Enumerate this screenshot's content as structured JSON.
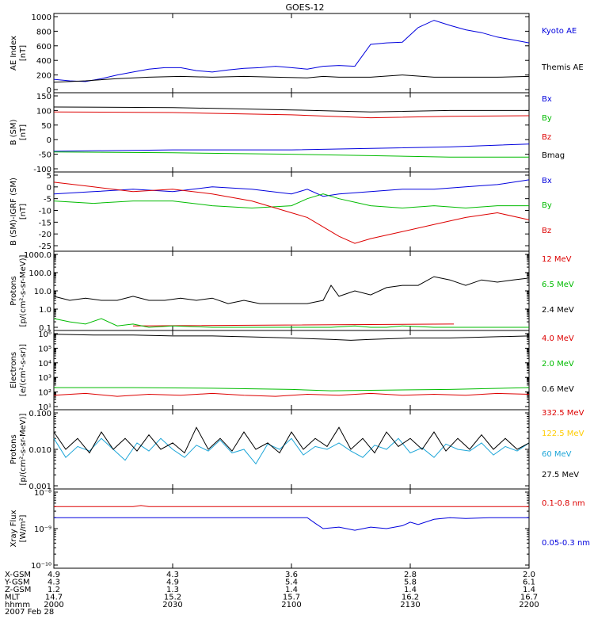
{
  "title": "GOES-12",
  "date_label": "2007 Feb 28",
  "chart_data": [
    {
      "type": "line",
      "id": "ae",
      "ylabel": [
        "AE Index",
        "[nT]"
      ],
      "ylim": [
        0,
        1000
      ],
      "scale": "linear",
      "yticks": [
        {
          "v": 0,
          "label": "0"
        },
        {
          "v": 200,
          "label": "200"
        },
        {
          "v": 400,
          "label": "400"
        },
        {
          "v": 600,
          "label": "600"
        },
        {
          "v": 800,
          "label": "800"
        },
        {
          "v": 1000,
          "label": "1000"
        }
      ],
      "series": [
        {
          "name": "Kyoto AE",
          "color": "#0000dd",
          "x": [
            0,
            4,
            8,
            12,
            16,
            20,
            24,
            28,
            32,
            36,
            40,
            44,
            48,
            52,
            56,
            60,
            64,
            68,
            72,
            76,
            80,
            84,
            88,
            92,
            96,
            100,
            104,
            108,
            112,
            116,
            120
          ],
          "values": [
            140,
            120,
            110,
            150,
            200,
            240,
            280,
            300,
            300,
            260,
            240,
            270,
            290,
            300,
            320,
            300,
            280,
            320,
            330,
            320,
            620,
            640,
            650,
            850,
            950,
            880,
            820,
            780,
            720,
            680,
            640
          ]
        },
        {
          "name": "Themis AE",
          "color": "#000000",
          "x": [
            0,
            8,
            16,
            24,
            32,
            40,
            48,
            56,
            64,
            68,
            72,
            80,
            88,
            96,
            104,
            112,
            120
          ],
          "values": [
            100,
            120,
            150,
            170,
            180,
            170,
            180,
            170,
            160,
            180,
            170,
            170,
            200,
            170,
            170,
            170,
            180
          ]
        }
      ]
    },
    {
      "type": "line",
      "id": "bsm",
      "ylabel": [
        "B (SM)",
        "[nT]"
      ],
      "ylim": [
        -100,
        150
      ],
      "scale": "linear",
      "yticks": [
        {
          "v": -100,
          "label": "-100"
        },
        {
          "v": -50,
          "label": "-50"
        },
        {
          "v": 0,
          "label": "0"
        },
        {
          "v": 50,
          "label": "50"
        },
        {
          "v": 100,
          "label": "100"
        },
        {
          "v": 150,
          "label": "150"
        }
      ],
      "series": [
        {
          "name": "Bx",
          "color": "#0000dd",
          "x": [
            0,
            30,
            60,
            80,
            100,
            120
          ],
          "values": [
            -40,
            -35,
            -35,
            -30,
            -25,
            -15
          ]
        },
        {
          "name": "By",
          "color": "#00bb00",
          "x": [
            0,
            30,
            60,
            80,
            100,
            120
          ],
          "values": [
            -42,
            -45,
            -50,
            -55,
            -60,
            -60
          ]
        },
        {
          "name": "Bz",
          "color": "#dd0000",
          "x": [
            0,
            30,
            60,
            80,
            100,
            120
          ],
          "values": [
            95,
            93,
            85,
            75,
            80,
            82
          ]
        },
        {
          "name": "Bmag",
          "color": "#000000",
          "x": [
            0,
            30,
            60,
            80,
            100,
            120
          ],
          "values": [
            112,
            110,
            102,
            95,
            100,
            100
          ]
        }
      ]
    },
    {
      "type": "line",
      "id": "bdiff",
      "ylabel": [
        "B (SM)-IGRF (SM)",
        "[nT]"
      ],
      "ylim": [
        -26,
        5
      ],
      "scale": "linear",
      "yticks": [
        {
          "v": -25,
          "label": "-25"
        },
        {
          "v": -20,
          "label": "-20"
        },
        {
          "v": -15,
          "label": "-15"
        },
        {
          "v": -10,
          "label": "-10"
        },
        {
          "v": -5,
          "label": "-5"
        },
        {
          "v": 0,
          "label": "0"
        },
        {
          "v": 5,
          "label": "5"
        }
      ],
      "series": [
        {
          "name": "Bx",
          "color": "#0000dd",
          "x": [
            0,
            10,
            20,
            30,
            40,
            50,
            60,
            64,
            68,
            72,
            80,
            88,
            96,
            104,
            112,
            120
          ],
          "values": [
            -3,
            -2,
            -1,
            -2,
            0,
            -1,
            -3,
            -1,
            -4,
            -3,
            -2,
            -1,
            -1,
            0,
            1,
            3
          ]
        },
        {
          "name": "By",
          "color": "#00bb00",
          "x": [
            0,
            10,
            20,
            30,
            40,
            50,
            60,
            64,
            68,
            72,
            80,
            88,
            96,
            104,
            112,
            120
          ],
          "values": [
            -6,
            -7,
            -6,
            -6,
            -8,
            -9,
            -8,
            -5,
            -3,
            -5,
            -8,
            -9,
            -8,
            -9,
            -8,
            -8
          ]
        },
        {
          "name": "Bz",
          "color": "#dd0000",
          "x": [
            0,
            10,
            20,
            30,
            40,
            50,
            60,
            64,
            68,
            72,
            76,
            80,
            88,
            96,
            104,
            112,
            120
          ],
          "values": [
            2,
            0,
            -2,
            -1,
            -3,
            -6,
            -11,
            -13,
            -17,
            -21,
            -24,
            -22,
            -19,
            -16,
            -13,
            -11,
            -14
          ]
        }
      ]
    },
    {
      "type": "line",
      "id": "protons_low",
      "ylabel": [
        "Protons",
        "[p/(cm²-s-sr-MeV)]"
      ],
      "ylim": [
        0.1,
        1000
      ],
      "scale": "log",
      "yticks": [
        {
          "v": 0.1,
          "label": "0.1"
        },
        {
          "v": 1,
          "label": "1.0"
        },
        {
          "v": 10,
          "label": "10.0"
        },
        {
          "v": 100,
          "label": "100.0"
        },
        {
          "v": 1000,
          "label": "1000.0"
        }
      ],
      "series": [
        {
          "name": "12 MeV",
          "color": "#dd0000",
          "x": [
            20,
            20.5,
            100,
            101
          ],
          "values": [
            0.12,
            0.12,
            0.15,
            0.15
          ]
        },
        {
          "name": "6.5 MeV",
          "color": "#00bb00",
          "x": [
            0,
            4,
            8,
            12,
            16,
            20,
            24,
            30,
            40,
            50,
            60,
            70,
            76,
            80,
            84,
            88,
            96,
            104,
            112,
            116,
            120
          ],
          "values": [
            0.3,
            0.2,
            0.15,
            0.3,
            0.12,
            0.15,
            0.1,
            0.12,
            0.1,
            0.1,
            0.1,
            0.1,
            0.12,
            0.1,
            0.1,
            0.12,
            0.1,
            0.1,
            0.1,
            0.1,
            0.1
          ]
        },
        {
          "name": "2.4 MeV",
          "color": "#000000",
          "x": [
            0,
            4,
            8,
            12,
            16,
            20,
            24,
            28,
            32,
            36,
            40,
            44,
            48,
            52,
            56,
            60,
            64,
            68,
            70,
            72,
            76,
            80,
            84,
            88,
            92,
            96,
            100,
            104,
            108,
            112,
            116,
            120
          ],
          "values": [
            5,
            3,
            4,
            3,
            3,
            5,
            3,
            3,
            4,
            3,
            4,
            2,
            3,
            2,
            2,
            2,
            2,
            3,
            20,
            5,
            10,
            6,
            15,
            20,
            20,
            60,
            40,
            20,
            40,
            30,
            40,
            50
          ]
        }
      ]
    },
    {
      "type": "line",
      "id": "electrons",
      "ylabel": [
        "Electrons",
        "[e/(cm²-s-sr)]"
      ],
      "ylim": [
        10,
        1000000
      ],
      "scale": "log",
      "yticks": [
        {
          "v": 10,
          "label": "10¹"
        },
        {
          "v": 100,
          "label": "10²"
        },
        {
          "v": 1000,
          "label": "10³"
        },
        {
          "v": 10000,
          "label": "10⁴"
        },
        {
          "v": 100000,
          "label": "10⁵"
        },
        {
          "v": 1000000,
          "label": "10⁶"
        }
      ],
      "series": [
        {
          "name": "4.0 MeV",
          "color": "#dd0000",
          "x": [
            0,
            8,
            16,
            24,
            32,
            40,
            48,
            56,
            64,
            72,
            80,
            88,
            96,
            104,
            112,
            120
          ],
          "values": [
            60,
            80,
            50,
            70,
            60,
            80,
            60,
            50,
            70,
            60,
            80,
            60,
            70,
            60,
            80,
            70
          ]
        },
        {
          "name": "2.0 MeV",
          "color": "#00bb00",
          "x": [
            0,
            20,
            40,
            60,
            70,
            80,
            100,
            120
          ],
          "values": [
            200,
            200,
            180,
            150,
            120,
            130,
            150,
            200
          ]
        },
        {
          "name": "0.6 MeV",
          "color": "#000000",
          "x": [
            0,
            10,
            20,
            30,
            40,
            50,
            60,
            70,
            75,
            80,
            90,
            100,
            110,
            120
          ],
          "values": [
            900000,
            800000,
            800000,
            700000,
            700000,
            600000,
            500000,
            400000,
            350000,
            400000,
            500000,
            500000,
            600000,
            700000
          ]
        }
      ]
    },
    {
      "type": "line",
      "id": "protons_high",
      "ylabel": [
        "Protons",
        "[p/(cm²-s-sr-MeV)]"
      ],
      "ylim": [
        0.001,
        0.1
      ],
      "scale": "log",
      "yticks": [
        {
          "v": 0.001,
          "label": "0.001"
        },
        {
          "v": 0.01,
          "label": "0.010"
        },
        {
          "v": 0.1,
          "label": "0.100"
        }
      ],
      "series": [
        {
          "name": "332.5 MeV",
          "color": "#dd0000",
          "x": [],
          "values": []
        },
        {
          "name": "122.5 MeV",
          "color": "#ffcc00",
          "x": [],
          "values": []
        },
        {
          "name": "60 MeV",
          "color": "#1ea6d8",
          "x": [
            0,
            3,
            6,
            9,
            12,
            15,
            18,
            21,
            24,
            27,
            30,
            33,
            36,
            39,
            42,
            45,
            48,
            51,
            54,
            57,
            60,
            63,
            66,
            69,
            72,
            75,
            78,
            81,
            84,
            87,
            90,
            93,
            96,
            99,
            102,
            105,
            108,
            111,
            114,
            117,
            120
          ],
          "values": [
            0.02,
            0.006,
            0.012,
            0.009,
            0.02,
            0.01,
            0.005,
            0.015,
            0.009,
            0.02,
            0.01,
            0.006,
            0.013,
            0.009,
            0.018,
            0.008,
            0.01,
            0.004,
            0.014,
            0.01,
            0.02,
            0.007,
            0.012,
            0.01,
            0.015,
            0.009,
            0.006,
            0.013,
            0.01,
            0.02,
            0.008,
            0.011,
            0.006,
            0.014,
            0.01,
            0.009,
            0.015,
            0.007,
            0.012,
            0.009,
            0.015
          ]
        },
        {
          "name": "27.5 MeV",
          "color": "#000000",
          "x": [
            0,
            3,
            6,
            9,
            12,
            15,
            18,
            21,
            24,
            27,
            30,
            33,
            36,
            39,
            42,
            45,
            48,
            51,
            54,
            57,
            60,
            63,
            66,
            69,
            72,
            75,
            78,
            81,
            84,
            87,
            90,
            93,
            96,
            99,
            102,
            105,
            108,
            111,
            114,
            117,
            120
          ],
          "values": [
            0.03,
            0.01,
            0.02,
            0.008,
            0.03,
            0.01,
            0.02,
            0.009,
            0.025,
            0.01,
            0.015,
            0.008,
            0.04,
            0.01,
            0.02,
            0.009,
            0.03,
            0.01,
            0.015,
            0.008,
            0.03,
            0.01,
            0.02,
            0.012,
            0.04,
            0.01,
            0.02,
            0.008,
            0.03,
            0.012,
            0.02,
            0.01,
            0.03,
            0.009,
            0.02,
            0.01,
            0.025,
            0.01,
            0.02,
            0.01,
            0.015
          ]
        }
      ]
    },
    {
      "type": "line",
      "id": "xray",
      "ylabel": [
        "Xray Flux",
        "[W/m²]"
      ],
      "ylim": [
        1e-10,
        1e-08
      ],
      "scale": "log",
      "yticks": [
        {
          "v": 1e-10,
          "label": "10⁻¹⁰"
        },
        {
          "v": 1e-09,
          "label": "10⁻⁹"
        },
        {
          "v": 1e-08,
          "label": "10⁻⁸"
        }
      ],
      "series": [
        {
          "name": "0.1-0.8 nm",
          "color": "#dd0000",
          "x": [
            0,
            20,
            22,
            24,
            40,
            60,
            80,
            100,
            120
          ],
          "values": [
            4e-09,
            4e-09,
            4.3e-09,
            4e-09,
            4e-09,
            4e-09,
            4e-09,
            4e-09,
            4e-09
          ]
        },
        {
          "name": "0.05-0.3 nm",
          "color": "#0000dd",
          "x": [
            0,
            60,
            64,
            66,
            68,
            72,
            76,
            80,
            84,
            88,
            90,
            92,
            96,
            100,
            104,
            110,
            120
          ],
          "values": [
            2e-09,
            2e-09,
            2e-09,
            1.4e-09,
            1e-09,
            1.1e-09,
            9e-10,
            1.1e-09,
            1e-09,
            1.2e-09,
            1.5e-09,
            1.3e-09,
            1.8e-09,
            2e-09,
            1.9e-09,
            2e-09,
            2e-09
          ]
        }
      ]
    }
  ],
  "x_axis": {
    "range_minutes": [
      0,
      120
    ],
    "ticks_minutes": [
      0,
      30,
      60,
      90,
      120
    ],
    "rows": [
      {
        "label": "X-GSM",
        "values": [
          "4.9",
          "4.3",
          "3.6",
          "2.8",
          "2.0"
        ]
      },
      {
        "label": "Y-GSM",
        "values": [
          "4.3",
          "4.9",
          "5.4",
          "5.8",
          "6.1"
        ]
      },
      {
        "label": "Z-GSM",
        "values": [
          "1.2",
          "1.3",
          "1.4",
          "1.4",
          "1.4"
        ]
      },
      {
        "label": "MLT",
        "values": [
          "14.7",
          "15.2",
          "15.7",
          "16.2",
          "16.7"
        ]
      },
      {
        "label": "hhmm",
        "values": [
          "2000",
          "2030",
          "2100",
          "2130",
          "2200"
        ]
      }
    ]
  }
}
